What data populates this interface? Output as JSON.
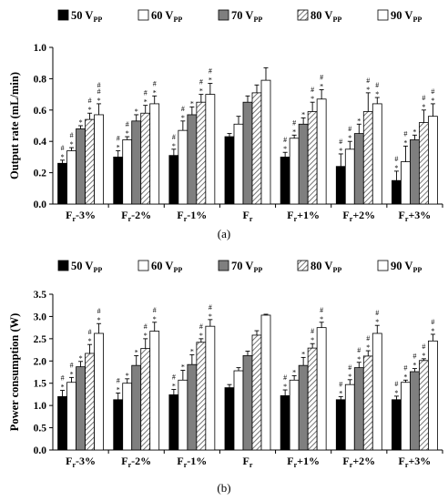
{
  "legend": [
    {
      "label": "50 V",
      "sub": "PP",
      "pattern": "solid-black"
    },
    {
      "label": "60 V",
      "sub": "PP",
      "pattern": "white"
    },
    {
      "label": "70 V",
      "sub": "PP",
      "pattern": "gray"
    },
    {
      "label": "80 V",
      "sub": "PP",
      "pattern": "hatch"
    },
    {
      "label": "90 V",
      "sub": "PP",
      "pattern": "white"
    }
  ],
  "colors": {
    "black": "#000000",
    "gray": "#7f7f7f",
    "white": "#ffffff",
    "hatch_line": "#555555"
  },
  "chart_data": [
    {
      "type": "bar",
      "panel_label": "(a)",
      "ylabel": "Output rate (mL/min)",
      "ylim": [
        0,
        1.0
      ],
      "yticks": [
        "0.0",
        "0.2",
        "0.4",
        "0.6",
        "0.8",
        "1.0"
      ],
      "categories": [
        {
          "main": "F",
          "sub": "r",
          "suffix": "-3%"
        },
        {
          "main": "F",
          "sub": "r",
          "suffix": "-2%"
        },
        {
          "main": "F",
          "sub": "r",
          "suffix": "-1%"
        },
        {
          "main": "F",
          "sub": "r",
          "suffix": ""
        },
        {
          "main": "F",
          "sub": "r",
          "suffix": "+1%"
        },
        {
          "main": "F",
          "sub": "r",
          "suffix": "+2%"
        },
        {
          "main": "F",
          "sub": "r",
          "suffix": "+3%"
        }
      ],
      "series": [
        {
          "name": "50 VPP",
          "values": [
            0.26,
            0.3,
            0.31,
            0.43,
            0.3,
            0.24,
            0.15
          ],
          "errors": [
            0.02,
            0.04,
            0.04,
            0.02,
            0.03,
            0.08,
            0.06
          ],
          "marks": [
            [
              "*",
              "#"
            ],
            [
              "*",
              "#"
            ],
            [
              "*",
              "#"
            ],
            [],
            [
              "*",
              "#"
            ],
            [
              "*",
              "#"
            ],
            [
              "*",
              "#"
            ]
          ]
        },
        {
          "name": "60 VPP",
          "values": [
            0.34,
            0.41,
            0.47,
            0.51,
            0.42,
            0.35,
            0.27
          ],
          "errors": [
            0.02,
            0.02,
            0.06,
            0.05,
            0.02,
            0.05,
            0.1
          ],
          "marks": [
            [
              "*",
              "#"
            ],
            [
              "*",
              "#"
            ],
            [
              "*",
              "#"
            ],
            [],
            [
              "*",
              "#"
            ],
            [
              "*",
              "#"
            ],
            [
              "*",
              "#"
            ]
          ]
        },
        {
          "name": "70 VPP",
          "values": [
            0.48,
            0.53,
            0.57,
            0.65,
            0.51,
            0.45,
            0.41
          ],
          "errors": [
            0.02,
            0.04,
            0.05,
            0.04,
            0.04,
            0.06,
            0.03
          ],
          "marks": [
            [
              "*"
            ],
            [
              "*"
            ],
            [
              "*"
            ],
            [],
            [
              "*"
            ],
            [
              "*"
            ],
            [
              "*"
            ]
          ]
        },
        {
          "name": "80 VPP",
          "values": [
            0.54,
            0.58,
            0.65,
            0.71,
            0.59,
            0.59,
            0.52
          ],
          "errors": [
            0.04,
            0.05,
            0.05,
            0.05,
            0.06,
            0.12,
            0.08
          ],
          "marks": [
            [
              "*",
              "#"
            ],
            [
              "*",
              "#"
            ],
            [
              "*",
              "#"
            ],
            [],
            [
              "*",
              "#"
            ],
            [
              "*",
              "#"
            ],
            [
              "*",
              "#"
            ]
          ]
        },
        {
          "name": "90 VPP",
          "values": [
            0.57,
            0.64,
            0.7,
            0.79,
            0.67,
            0.64,
            0.56
          ],
          "errors": [
            0.07,
            0.05,
            0.07,
            0.08,
            0.06,
            0.04,
            0.08
          ],
          "marks": [
            [
              "*",
              "#",
              "#"
            ],
            [
              "*",
              "#"
            ],
            [
              "*",
              "#"
            ],
            [],
            [
              "*",
              "#"
            ],
            [
              "*",
              "#"
            ],
            [
              "*",
              "#"
            ]
          ]
        }
      ]
    },
    {
      "type": "bar",
      "panel_label": "(b)",
      "ylabel": "Power consumption (W)",
      "ylim": [
        0,
        3.5
      ],
      "yticks": [
        "0.0",
        "0.5",
        "1.0",
        "1.5",
        "2.0",
        "2.5",
        "3.0",
        "3.5"
      ],
      "categories": [
        {
          "main": "F",
          "sub": "r",
          "suffix": "-3%"
        },
        {
          "main": "F",
          "sub": "r",
          "suffix": "-2%"
        },
        {
          "main": "F",
          "sub": "r",
          "suffix": "-1%"
        },
        {
          "main": "F",
          "sub": "r",
          "suffix": ""
        },
        {
          "main": "F",
          "sub": "r",
          "suffix": "+1%"
        },
        {
          "main": "F",
          "sub": "r",
          "suffix": "+2%"
        },
        {
          "main": "F",
          "sub": "r",
          "suffix": "+3%"
        }
      ],
      "series": [
        {
          "name": "50 VPP",
          "values": [
            1.2,
            1.13,
            1.24,
            1.4,
            1.22,
            1.13,
            1.13
          ],
          "errors": [
            0.14,
            0.15,
            0.12,
            0.07,
            0.13,
            0.07,
            0.08
          ],
          "marks": [
            [
              "*",
              "#"
            ],
            [
              "*",
              "#"
            ],
            [
              "*",
              "#"
            ],
            [],
            [
              "*",
              "#"
            ],
            [
              "*",
              "#"
            ],
            [
              "*",
              "#"
            ]
          ]
        },
        {
          "name": "60 VPP",
          "values": [
            1.52,
            1.5,
            1.57,
            1.78,
            1.57,
            1.47,
            1.52
          ],
          "errors": [
            0.11,
            0.1,
            0.22,
            0.07,
            0.1,
            0.11,
            0.05
          ],
          "marks": [
            [
              "*",
              "#"
            ],
            [
              "*"
            ],
            [
              "*"
            ],
            [],
            [
              "*"
            ],
            [
              "*",
              "#"
            ],
            [
              "*",
              "#"
            ]
          ]
        },
        {
          "name": "70 VPP",
          "values": [
            1.87,
            1.9,
            1.92,
            2.12,
            1.9,
            1.85,
            1.76
          ],
          "errors": [
            0.12,
            0.22,
            0.22,
            0.1,
            0.18,
            0.12,
            0.07
          ],
          "marks": [
            [
              "*"
            ],
            [
              "*"
            ],
            [
              "*"
            ],
            [],
            [
              "*"
            ],
            [
              "*",
              "#"
            ],
            [
              "*",
              "#"
            ]
          ]
        },
        {
          "name": "80 VPP",
          "values": [
            2.17,
            2.28,
            2.42,
            2.58,
            2.29,
            2.11,
            2.01
          ],
          "errors": [
            0.2,
            0.22,
            0.08,
            0.1,
            0.1,
            0.12,
            0.04
          ],
          "marks": [
            [
              "*",
              "#"
            ],
            [
              "*",
              "#"
            ],
            [
              "*",
              "#"
            ],
            [],
            [
              "*",
              "#"
            ],
            [
              "*",
              "#"
            ],
            [
              "*",
              "#"
            ]
          ]
        },
        {
          "name": "90 VPP",
          "values": [
            2.62,
            2.67,
            2.78,
            3.03,
            2.75,
            2.62,
            2.45
          ],
          "errors": [
            0.22,
            0.2,
            0.15,
            0.02,
            0.12,
            0.18,
            0.15
          ],
          "marks": [
            [
              "*",
              "#"
            ],
            [
              "*",
              "#"
            ],
            [
              "*",
              "#"
            ],
            [],
            [
              "*",
              "#"
            ],
            [
              "*",
              "#"
            ],
            [
              "*",
              "#"
            ]
          ]
        }
      ]
    }
  ]
}
